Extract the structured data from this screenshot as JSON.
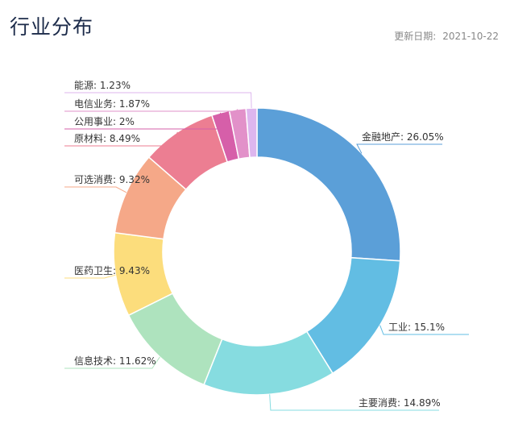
{
  "header": {
    "title": "行业分布",
    "update_label": "更新日期:",
    "update_date": "2021-10-22"
  },
  "chart_data": {
    "type": "pie",
    "categories": [
      "金融地产",
      "工业",
      "主要消费",
      "信息技术",
      "医药卫生",
      "可选消费",
      "原材料",
      "公用事业",
      "电信业务",
      "能源"
    ],
    "values": [
      26.05,
      15.1,
      14.89,
      11.62,
      9.43,
      9.32,
      8.49,
      2,
      1.87,
      1.23
    ],
    "labels": [
      "金融地产: 26.05%",
      "工业: 15.1%",
      "主要消费: 14.89%",
      "信息技术: 11.62%",
      "医药卫生: 9.43%",
      "可选消费: 9.32%",
      "原材料: 8.49%",
      "公用事业: 2%",
      "电信业务: 1.87%",
      "能源: 1.23%"
    ],
    "colors": [
      "#5b9fd8",
      "#62bde3",
      "#86dce0",
      "#aee3be",
      "#fcdd7c",
      "#f5a888",
      "#ec7e92",
      "#d65fa9",
      "#e291c9",
      "#ddb6ee"
    ],
    "donut": true
  }
}
